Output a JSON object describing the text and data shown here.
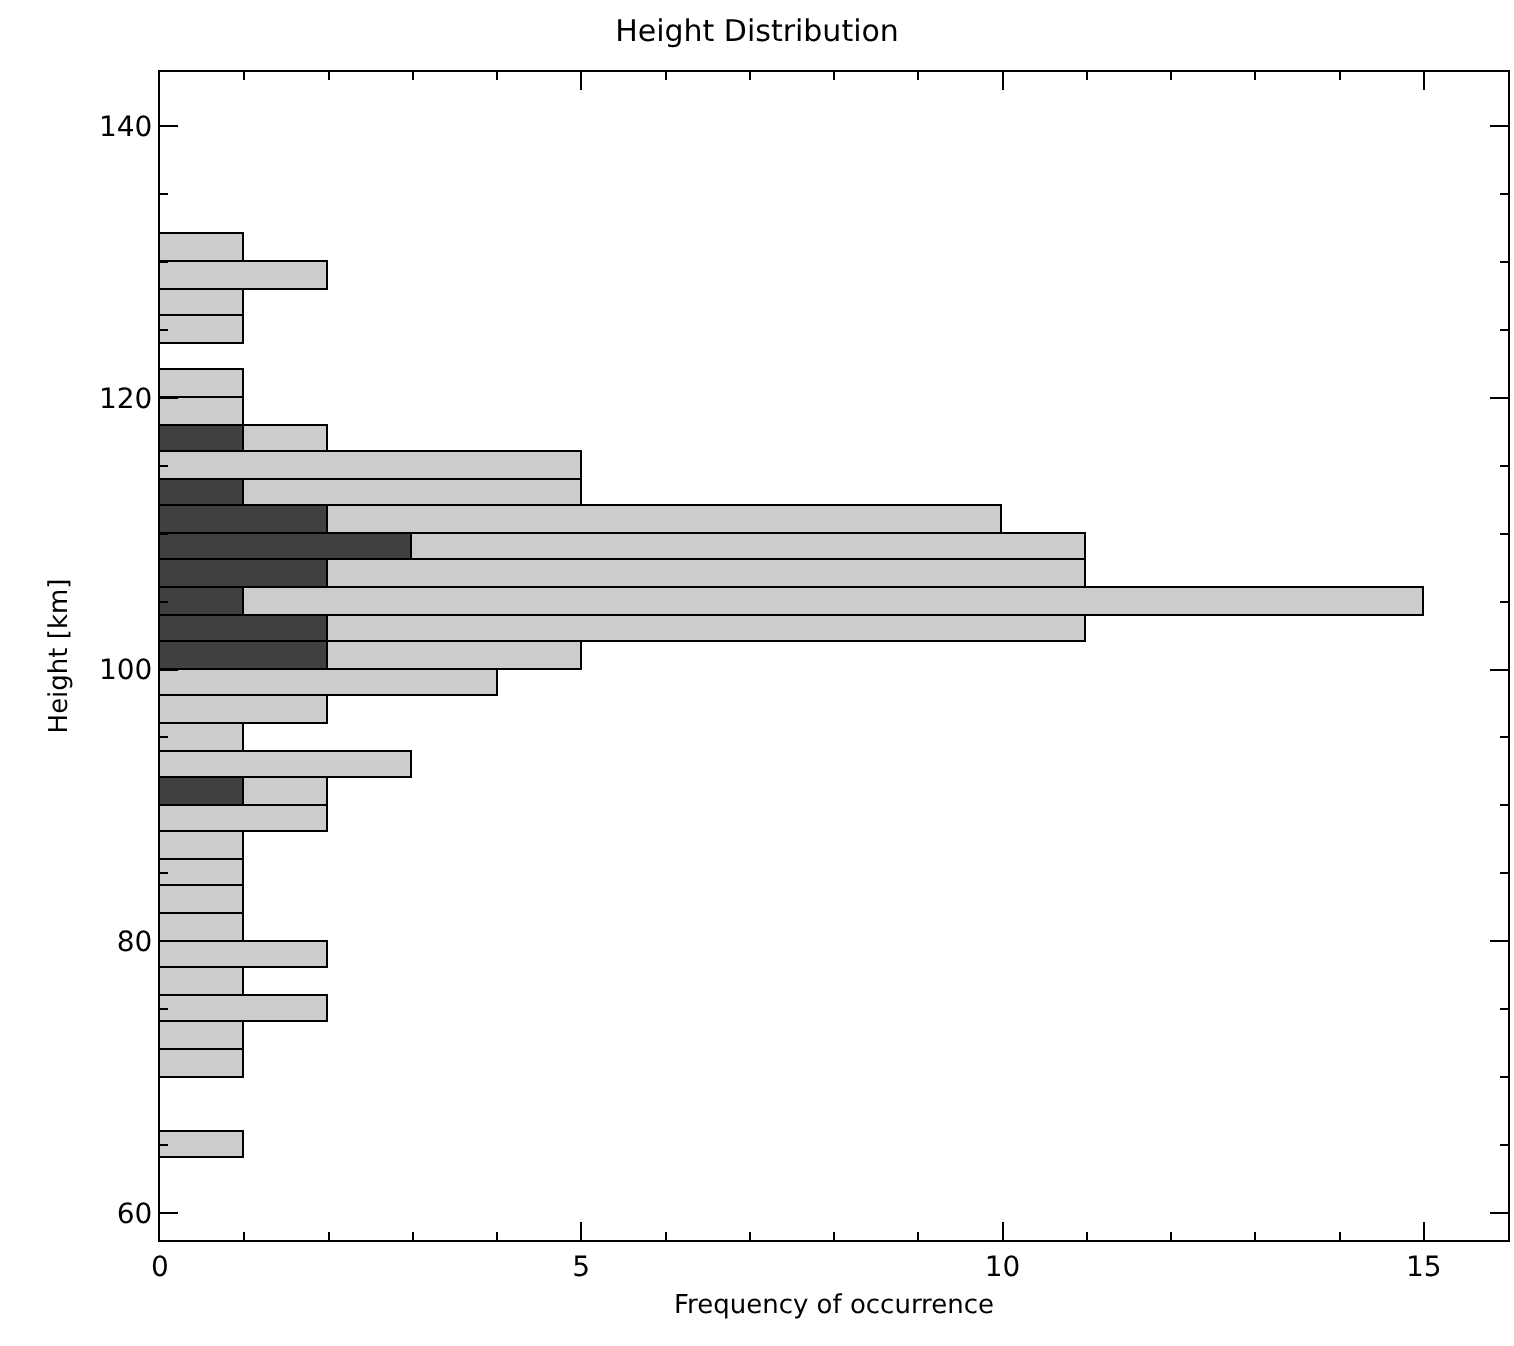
{
  "chart_data": {
    "type": "bar",
    "title": "Height Distribution",
    "xlabel": "Frequency of occurrence",
    "ylabel": "Height [km]",
    "orientation": "horizontal",
    "stacked": true,
    "x": [
      65,
      67,
      69,
      71,
      73,
      75,
      77,
      79,
      81,
      83,
      85,
      87,
      89,
      91,
      93,
      95,
      97,
      99,
      101,
      103,
      105,
      107,
      109,
      111,
      113,
      115,
      117,
      119,
      121,
      123,
      125,
      127,
      129,
      131
    ],
    "series": [
      {
        "color": "#404040",
        "values": [
          0,
          0,
          0,
          0,
          0,
          0,
          0,
          0,
          0,
          0,
          0,
          0,
          0,
          1,
          0,
          0,
          0,
          0,
          2,
          2,
          1,
          2,
          3,
          2,
          1,
          0,
          1,
          0,
          0,
          0,
          0,
          0,
          0,
          0
        ]
      },
      {
        "color": "#cccccc",
        "values": [
          1,
          0,
          0,
          1,
          1,
          2,
          1,
          2,
          1,
          1,
          1,
          1,
          2,
          1,
          3,
          1,
          2,
          4,
          3,
          9,
          14,
          9,
          8,
          8,
          4,
          5,
          1,
          1,
          1,
          0,
          1,
          1,
          2,
          1
        ]
      }
    ],
    "xlim": [
      0,
      16
    ],
    "xticks": [
      0,
      5,
      10,
      15
    ],
    "ylim": [
      58,
      144
    ],
    "yticks": [
      60,
      80,
      100,
      120,
      140
    ],
    "legend": false
  }
}
